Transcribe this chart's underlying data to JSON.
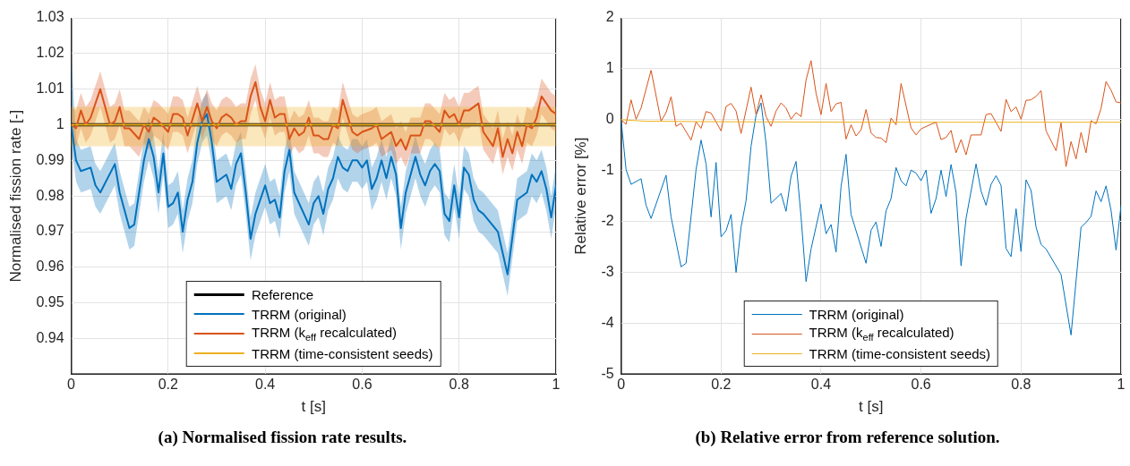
{
  "chart_data": [
    {
      "type": "line",
      "title": "(a) Normalised fission rate results.",
      "xlabel": "t [s]",
      "ylabel": "Normalised fission rate [-]",
      "xlim": [
        0,
        1
      ],
      "xticks": [
        0,
        0.2,
        0.4,
        0.6,
        0.8,
        1
      ],
      "ylim": [
        0.93,
        1.03
      ],
      "yticks": [
        0.94,
        0.95,
        0.96,
        0.97,
        0.98,
        0.99,
        1,
        1.01,
        1.02,
        1.03
      ],
      "grid": true,
      "legend": "bottom",
      "series": [
        {
          "name": "Reference",
          "color": "#000000",
          "x": [
            0,
            1
          ],
          "values": [
            1,
            1
          ]
        },
        {
          "name": "TRRM (original)",
          "color": "#0072bd",
          "x": [
            0,
            0.01,
            0.02,
            0.04,
            0.05,
            0.06,
            0.09,
            0.1,
            0.12,
            0.13,
            0.15,
            0.16,
            0.17,
            0.18,
            0.19,
            0.2,
            0.21,
            0.22,
            0.23,
            0.24,
            0.25,
            0.26,
            0.27,
            0.28,
            0.29,
            0.3,
            0.32,
            0.33,
            0.34,
            0.35,
            0.36,
            0.37,
            0.38,
            0.4,
            0.41,
            0.42,
            0.43,
            0.44,
            0.45,
            0.46,
            0.49,
            0.5,
            0.51,
            0.52,
            0.53,
            0.54,
            0.55,
            0.56,
            0.57,
            0.58,
            0.59,
            0.6,
            0.61,
            0.62,
            0.63,
            0.64,
            0.65,
            0.66,
            0.67,
            0.68,
            0.69,
            0.71,
            0.72,
            0.73,
            0.74,
            0.75,
            0.76,
            0.77,
            0.78,
            0.79,
            0.8,
            0.81,
            0.82,
            0.83,
            0.84,
            0.85,
            0.88,
            0.89,
            0.9,
            0.92,
            0.93,
            0.94,
            0.95,
            0.96,
            0.97,
            0.98,
            0.99,
            1
          ],
          "values": [
            1,
            0.99,
            0.987,
            0.988,
            0.983,
            0.981,
            0.989,
            0.981,
            0.971,
            0.972,
            0.99,
            0.996,
            0.991,
            0.981,
            0.992,
            0.977,
            0.978,
            0.981,
            0.97,
            0.979,
            0.984,
            0.995,
            1.001,
            1.003,
            0.995,
            0.984,
            0.986,
            0.982,
            0.989,
            0.992,
            0.981,
            0.968,
            0.975,
            0.983,
            0.978,
            0.979,
            0.974,
            0.987,
            0.993,
            0.981,
            0.972,
            0.978,
            0.98,
            0.975,
            0.982,
            0.985,
            0.991,
            0.988,
            0.987,
            0.99,
            0.99,
            0.988,
            0.99,
            0.982,
            0.985,
            0.99,
            0.985,
            0.991,
            0.986,
            0.971,
            0.981,
            0.991,
            0.986,
            0.983,
            0.987,
            0.989,
            0.987,
            0.975,
            0.973,
            0.983,
            0.974,
            0.988,
            0.986,
            0.979,
            0.976,
            0.975,
            0.97,
            0.964,
            0.958,
            0.979,
            0.98,
            0.981,
            0.986,
            0.984,
            0.987,
            0.982,
            0.974,
            0.983
          ],
          "lower": [
            0.994,
            0.984,
            0.981,
            0.982,
            0.977,
            0.975,
            0.983,
            0.975,
            0.965,
            0.966,
            0.984,
            0.99,
            0.985,
            0.975,
            0.986,
            0.971,
            0.972,
            0.975,
            0.964,
            0.973,
            0.978,
            0.989,
            0.995,
            0.997,
            0.989,
            0.978,
            0.98,
            0.976,
            0.983,
            0.986,
            0.975,
            0.962,
            0.969,
            0.977,
            0.972,
            0.973,
            0.968,
            0.981,
            0.987,
            0.975,
            0.966,
            0.972,
            0.974,
            0.969,
            0.976,
            0.979,
            0.985,
            0.982,
            0.981,
            0.984,
            0.984,
            0.982,
            0.984,
            0.976,
            0.979,
            0.984,
            0.979,
            0.985,
            0.98,
            0.965,
            0.975,
            0.985,
            0.98,
            0.977,
            0.981,
            0.983,
            0.981,
            0.969,
            0.967,
            0.977,
            0.968,
            0.982,
            0.98,
            0.973,
            0.97,
            0.969,
            0.964,
            0.958,
            0.952,
            0.973,
            0.974,
            0.975,
            0.98,
            0.978,
            0.981,
            0.976,
            0.968,
            0.977
          ],
          "upper": [
            1.02,
            0.996,
            0.993,
            0.994,
            0.989,
            0.987,
            0.995,
            0.987,
            0.977,
            0.978,
            0.996,
            1.002,
            0.997,
            0.987,
            0.998,
            0.983,
            0.984,
            0.987,
            0.976,
            0.985,
            0.99,
            1.001,
            1.007,
            1.009,
            1.001,
            0.99,
            0.992,
            0.988,
            0.995,
            0.998,
            0.987,
            0.974,
            0.981,
            0.989,
            0.984,
            0.985,
            0.98,
            0.993,
            0.999,
            0.987,
            0.978,
            0.984,
            0.986,
            0.981,
            0.988,
            0.991,
            0.997,
            0.994,
            0.993,
            0.996,
            0.996,
            0.994,
            0.996,
            0.988,
            0.991,
            0.996,
            0.991,
            0.997,
            0.992,
            0.977,
            0.987,
            0.997,
            0.992,
            0.989,
            0.993,
            0.995,
            0.993,
            0.981,
            0.979,
            0.989,
            0.98,
            0.994,
            0.992,
            0.985,
            0.982,
            0.981,
            0.976,
            0.97,
            0.964,
            0.985,
            0.986,
            0.987,
            0.992,
            0.99,
            0.993,
            0.988,
            0.98,
            0.989
          ]
        },
        {
          "name": "TRRM (k$_{eff}$ recalculated)",
          "color": "#d95319",
          "x": [
            0,
            0.01,
            0.02,
            0.03,
            0.04,
            0.06,
            0.08,
            0.09,
            0.1,
            0.11,
            0.12,
            0.14,
            0.15,
            0.16,
            0.17,
            0.18,
            0.2,
            0.21,
            0.22,
            0.23,
            0.24,
            0.26,
            0.27,
            0.28,
            0.29,
            0.3,
            0.31,
            0.32,
            0.33,
            0.34,
            0.35,
            0.36,
            0.37,
            0.38,
            0.39,
            0.4,
            0.41,
            0.42,
            0.43,
            0.44,
            0.45,
            0.46,
            0.47,
            0.48,
            0.49,
            0.5,
            0.51,
            0.52,
            0.53,
            0.54,
            0.55,
            0.56,
            0.58,
            0.59,
            0.6,
            0.62,
            0.63,
            0.64,
            0.65,
            0.66,
            0.67,
            0.68,
            0.69,
            0.7,
            0.72,
            0.73,
            0.74,
            0.76,
            0.77,
            0.78,
            0.79,
            0.8,
            0.81,
            0.82,
            0.83,
            0.84,
            0.85,
            0.87,
            0.88,
            0.89,
            0.9,
            0.91,
            0.92,
            0.93,
            0.94,
            0.95,
            0.96,
            0.97,
            0.98,
            0.99,
            1
          ],
          "values": [
            1,
            0.999,
            1.004,
            1,
            1.002,
            1.01,
            1,
            1.001,
            1.005,
            0.999,
            0.999,
            0.996,
            1,
            0.998,
            1.002,
            1.001,
            0.998,
            1.003,
            1.003,
            1.002,
            0.997,
            1.006,
            1.001,
            1.005,
            1.001,
            0.999,
            1.002,
            1.003,
            1.002,
            1,
            1.001,
            1.001,
            1.008,
            1.012,
            1.005,
            1.001,
            1.007,
            1.002,
            1.003,
            1.003,
            0.996,
            0.999,
            0.997,
            0.998,
            1.002,
            0.997,
            0.997,
            0.996,
            0.996,
            1,
            0.999,
            1.007,
            0.998,
            0.997,
            0.998,
            0.999,
            1,
            0.996,
            0.997,
            0.998,
            0.994,
            0.996,
            0.993,
            0.997,
            0.997,
            1.001,
            1.001,
            0.998,
            1.004,
            1.002,
            1.003,
            1,
            1.004,
            1.004,
            1.005,
            1.006,
            0.998,
            0.994,
            0.999,
            0.991,
            0.996,
            0.992,
            0.998,
            0.994,
            1,
            0.999,
            1.002,
            1.008,
            1.006,
            1.004,
            1.003
          ],
          "lower": [
            0.995,
            0.994,
            0.999,
            0.995,
            0.997,
            1.005,
            0.995,
            0.996,
            1,
            0.994,
            0.994,
            0.991,
            0.995,
            0.993,
            0.997,
            0.996,
            0.993,
            0.998,
            0.998,
            0.997,
            0.992,
            1.001,
            0.996,
            1,
            0.996,
            0.994,
            0.997,
            0.998,
            0.997,
            0.995,
            0.996,
            0.996,
            1.003,
            1.007,
            1,
            0.996,
            1.002,
            0.997,
            0.998,
            0.998,
            0.991,
            0.994,
            0.992,
            0.993,
            0.997,
            0.992,
            0.992,
            0.991,
            0.991,
            0.995,
            0.994,
            1.002,
            0.993,
            0.992,
            0.993,
            0.994,
            0.995,
            0.991,
            0.992,
            0.993,
            0.989,
            0.991,
            0.988,
            0.992,
            0.992,
            0.996,
            0.996,
            0.993,
            0.999,
            0.997,
            0.998,
            0.995,
            0.999,
            0.999,
            1,
            1.001,
            0.993,
            0.989,
            0.994,
            0.986,
            0.991,
            0.987,
            0.993,
            0.989,
            0.995,
            0.994,
            0.997,
            1.003,
            1.001,
            0.999,
            0.998
          ],
          "upper": [
            1.005,
            1.004,
            1.009,
            1.005,
            1.007,
            1.015,
            1.005,
            1.006,
            1.01,
            1.004,
            1.004,
            1.001,
            1.005,
            1.003,
            1.007,
            1.006,
            1.003,
            1.008,
            1.008,
            1.007,
            1.002,
            1.011,
            1.006,
            1.01,
            1.006,
            1.004,
            1.007,
            1.008,
            1.007,
            1.005,
            1.006,
            1.006,
            1.013,
            1.017,
            1.01,
            1.006,
            1.012,
            1.007,
            1.008,
            1.008,
            1.001,
            1.004,
            1.002,
            1.003,
            1.007,
            1.002,
            1.002,
            1.001,
            1.001,
            1.005,
            1.004,
            1.012,
            1.003,
            1.002,
            1.003,
            1.004,
            1.005,
            1.001,
            1.002,
            1.003,
            0.999,
            1.001,
            0.998,
            1.002,
            1.002,
            1.006,
            1.006,
            1.003,
            1.009,
            1.007,
            1.008,
            1.005,
            1.009,
            1.009,
            1.01,
            1.011,
            1.003,
            0.999,
            1.004,
            0.996,
            1.001,
            0.997,
            1.003,
            0.999,
            1.005,
            1.004,
            1.007,
            1.013,
            1.011,
            1.009,
            1.008
          ]
        },
        {
          "name": "TRRM (time-consistent seeds)",
          "color": "#edb120",
          "x": [
            0,
            0.05,
            0.2,
            0.5,
            1
          ],
          "values": [
            1,
            1,
            1,
            1,
            1
          ],
          "lower": [
            0.994,
            0.994,
            0.994,
            0.994,
            0.994
          ],
          "upper": [
            1.005,
            1.005,
            1.005,
            1.005,
            1.005
          ]
        }
      ]
    },
    {
      "type": "line",
      "title": "(b) Relative error from reference solution.",
      "xlabel": "t [s]",
      "ylabel": "Relative error [%]",
      "xlim": [
        0,
        1
      ],
      "xticks": [
        0,
        0.2,
        0.4,
        0.6,
        0.8,
        1
      ],
      "ylim": [
        -5,
        2
      ],
      "yticks": [
        -5,
        -4,
        -3,
        -2,
        -1,
        0,
        1,
        2
      ],
      "grid": true,
      "legend": "bottom",
      "series": [
        {
          "name": "TRRM (original)",
          "color": "#0072bd",
          "x": [
            0,
            0.01,
            0.02,
            0.04,
            0.05,
            0.06,
            0.09,
            0.1,
            0.12,
            0.13,
            0.15,
            0.16,
            0.17,
            0.18,
            0.19,
            0.2,
            0.21,
            0.22,
            0.23,
            0.24,
            0.25,
            0.26,
            0.27,
            0.28,
            0.29,
            0.3,
            0.32,
            0.33,
            0.34,
            0.35,
            0.36,
            0.37,
            0.38,
            0.4,
            0.41,
            0.42,
            0.43,
            0.44,
            0.45,
            0.46,
            0.49,
            0.5,
            0.51,
            0.52,
            0.53,
            0.54,
            0.55,
            0.56,
            0.57,
            0.58,
            0.59,
            0.6,
            0.61,
            0.62,
            0.63,
            0.64,
            0.65,
            0.66,
            0.67,
            0.68,
            0.69,
            0.71,
            0.72,
            0.73,
            0.74,
            0.75,
            0.76,
            0.77,
            0.78,
            0.79,
            0.8,
            0.81,
            0.82,
            0.83,
            0.84,
            0.85,
            0.88,
            0.89,
            0.9,
            0.92,
            0.93,
            0.94,
            0.95,
            0.96,
            0.97,
            0.98,
            0.99,
            1
          ],
          "values": [
            0,
            -0.98,
            -1.27,
            -1.16,
            -1.68,
            -1.94,
            -1.09,
            -1.91,
            -2.89,
            -2.82,
            -0.98,
            -0.4,
            -0.87,
            -1.91,
            -0.84,
            -2.3,
            -2.18,
            -1.86,
            -3.0,
            -2.11,
            -1.59,
            -0.52,
            0.09,
            0.33,
            -0.46,
            -1.64,
            -1.45,
            -1.8,
            -1.11,
            -0.82,
            -1.91,
            -3.18,
            -2.54,
            -1.66,
            -2.24,
            -2.06,
            -2.6,
            -1.31,
            -0.68,
            -1.86,
            -2.82,
            -2.17,
            -2.01,
            -2.49,
            -1.79,
            -1.55,
            -0.94,
            -1.2,
            -1.3,
            -0.99,
            -1.05,
            -1.2,
            -0.99,
            -1.84,
            -1.55,
            -0.99,
            -1.51,
            -0.88,
            -1.43,
            -2.87,
            -1.94,
            -0.87,
            -1.4,
            -1.68,
            -1.27,
            -1.1,
            -1.29,
            -2.53,
            -2.69,
            -1.75,
            -2.59,
            -1.18,
            -1.39,
            -2.11,
            -2.45,
            -2.54,
            -3.04,
            -3.64,
            -4.23,
            -2.11,
            -2.02,
            -1.9,
            -1.4,
            -1.61,
            -1.3,
            -1.78,
            -2.56,
            -1.68
          ]
        },
        {
          "name": "TRRM (k$_{eff}$ recalculated)",
          "color": "#d95319",
          "x": [
            0,
            0.01,
            0.02,
            0.03,
            0.04,
            0.06,
            0.08,
            0.09,
            0.1,
            0.11,
            0.12,
            0.14,
            0.15,
            0.16,
            0.17,
            0.18,
            0.2,
            0.21,
            0.22,
            0.23,
            0.24,
            0.26,
            0.27,
            0.28,
            0.29,
            0.3,
            0.31,
            0.32,
            0.33,
            0.34,
            0.35,
            0.36,
            0.37,
            0.38,
            0.39,
            0.4,
            0.41,
            0.42,
            0.43,
            0.44,
            0.45,
            0.46,
            0.47,
            0.48,
            0.49,
            0.5,
            0.51,
            0.52,
            0.53,
            0.54,
            0.55,
            0.56,
            0.58,
            0.59,
            0.6,
            0.62,
            0.63,
            0.64,
            0.65,
            0.66,
            0.67,
            0.68,
            0.69,
            0.7,
            0.72,
            0.73,
            0.74,
            0.76,
            0.77,
            0.78,
            0.79,
            0.8,
            0.81,
            0.82,
            0.83,
            0.84,
            0.85,
            0.87,
            0.88,
            0.89,
            0.9,
            0.91,
            0.92,
            0.93,
            0.94,
            0.95,
            0.96,
            0.97,
            0.98,
            0.99,
            1
          ],
          "values": [
            0,
            -0.09,
            0.39,
            0.01,
            0.23,
            0.97,
            -0.03,
            0.14,
            0.45,
            -0.13,
            -0.07,
            -0.4,
            -0.04,
            -0.17,
            0.16,
            0.13,
            -0.22,
            0.26,
            0.32,
            0.17,
            -0.27,
            0.64,
            0.1,
            0.49,
            0.06,
            -0.13,
            0.17,
            0.33,
            0.23,
            0.01,
            0.14,
            0.06,
            0.78,
            1.16,
            0.52,
            0.1,
            0.71,
            0.16,
            0.31,
            0.34,
            -0.38,
            -0.1,
            -0.32,
            -0.2,
            0.2,
            -0.26,
            -0.35,
            -0.36,
            -0.45,
            0.03,
            -0.1,
            0.71,
            -0.16,
            -0.3,
            -0.18,
            -0.09,
            -0.05,
            -0.39,
            -0.35,
            -0.21,
            -0.65,
            -0.39,
            -0.69,
            -0.3,
            -0.3,
            0.1,
            0.12,
            -0.23,
            0.4,
            0.16,
            0.25,
            0.01,
            0.38,
            0.39,
            0.46,
            0.57,
            -0.22,
            -0.61,
            -0.06,
            -0.92,
            -0.43,
            -0.77,
            -0.25,
            -0.65,
            -0.02,
            -0.08,
            0.22,
            0.75,
            0.58,
            0.35,
            0.33
          ]
        },
        {
          "name": "TRRM (time-consistent seeds)",
          "color": "#edb120",
          "x": [
            0,
            0.05,
            0.2,
            0.5,
            1
          ],
          "values": [
            0,
            -0.03,
            -0.04,
            -0.05,
            -0.05
          ]
        }
      ]
    }
  ]
}
